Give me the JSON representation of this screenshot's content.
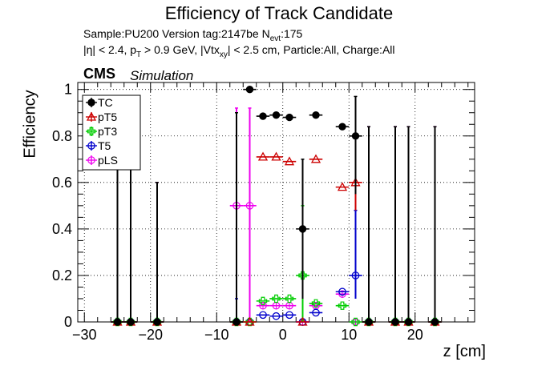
{
  "title": "Efficiency of Track Candidate",
  "info_line1": "Sample:PU200   Version tag:2147be  N_evt:175",
  "info_line2": "|η| < 2.4, p_T > 0.9 GeV, |Vtx_xy| < 2.5 cm, Particle:All, Charge:All",
  "cms_label": "CMS",
  "simulation_label": "Simulation",
  "colors": {
    "TC": "#000000",
    "pT5": "#cc0000",
    "pT3": "#00cc00",
    "T5": "#0000cc",
    "pLS": "#ee00ee"
  },
  "chart_data": {
    "type": "scatter",
    "title": "Efficiency of Track Candidate",
    "xlabel": "z [cm]",
    "ylabel": "Efficiency",
    "xlim": [
      -31,
      29
    ],
    "ylim": [
      0,
      1.03
    ],
    "xticks": [
      -30,
      -20,
      -10,
      0,
      10,
      20
    ],
    "yticks": [
      0,
      0.2,
      0.4,
      0.6,
      0.8,
      1
    ],
    "xtick_labels": [
      "−30",
      "−20",
      "−10",
      "0",
      "10",
      "20"
    ],
    "ytick_labels": [
      "0",
      "0.2",
      "0.4",
      "0.6",
      "0.8",
      "1"
    ],
    "grid": true,
    "legend_position": "top-left",
    "series": [
      {
        "name": "TC",
        "marker": "filled-circle",
        "points": [
          {
            "x": -25,
            "y": 0.0,
            "err_up": 0.85
          },
          {
            "x": -23,
            "y": 0.0,
            "err_up": 0.85
          },
          {
            "x": -19,
            "y": 0.0,
            "err_up": 0.6
          },
          {
            "x": -7,
            "y": 0.0,
            "err_up": 0.9
          },
          {
            "x": -5,
            "y": 1.0,
            "err_low": 0.0
          },
          {
            "x": -3,
            "y": 0.885
          },
          {
            "x": -1,
            "y": 0.89
          },
          {
            "x": 1,
            "y": 0.88
          },
          {
            "x": 3,
            "y": 0.4,
            "err_up": 0.3,
            "err_low": 0.3
          },
          {
            "x": 5,
            "y": 0.89
          },
          {
            "x": 9,
            "y": 0.84
          },
          {
            "x": 11,
            "y": 0.8,
            "err_up": 0.17,
            "err_low": 0.25
          },
          {
            "x": 13,
            "y": 0.0,
            "err_up": 0.84
          },
          {
            "x": 17,
            "y": 0.0,
            "err_up": 0.84
          },
          {
            "x": 19,
            "y": 0.0,
            "err_up": 0.84
          },
          {
            "x": 23,
            "y": 0.0,
            "err_up": 0.84
          }
        ]
      },
      {
        "name": "pT5",
        "marker": "open-triangle",
        "points": [
          {
            "x": -25,
            "y": 0.0
          },
          {
            "x": -23,
            "y": 0.0
          },
          {
            "x": -19,
            "y": 0.0
          },
          {
            "x": -7,
            "y": 0.0
          },
          {
            "x": -5,
            "y": 0.0
          },
          {
            "x": -3,
            "y": 0.71
          },
          {
            "x": -1,
            "y": 0.71
          },
          {
            "x": 1,
            "y": 0.69
          },
          {
            "x": 3,
            "y": 0.0
          },
          {
            "x": 5,
            "y": 0.7
          },
          {
            "x": 9,
            "y": 0.58
          },
          {
            "x": 11,
            "y": 0.6,
            "err_up": 0.2,
            "err_low": 0.12
          },
          {
            "x": 13,
            "y": 0.0
          },
          {
            "x": 17,
            "y": 0.0
          },
          {
            "x": 19,
            "y": 0.0
          },
          {
            "x": 23,
            "y": 0.0
          }
        ]
      },
      {
        "name": "pT3",
        "marker": "open-cross",
        "points": [
          {
            "x": -25,
            "y": 0.0
          },
          {
            "x": -23,
            "y": 0.0
          },
          {
            "x": -19,
            "y": 0.0
          },
          {
            "x": -7,
            "y": 0.0
          },
          {
            "x": -5,
            "y": 0.0
          },
          {
            "x": -3,
            "y": 0.09
          },
          {
            "x": -1,
            "y": 0.1
          },
          {
            "x": 1,
            "y": 0.1
          },
          {
            "x": 3,
            "y": 0.2,
            "err_up": 0.3,
            "err_low": 0.2
          },
          {
            "x": 5,
            "y": 0.08
          },
          {
            "x": 9,
            "y": 0.07
          },
          {
            "x": 11,
            "y": 0.0
          },
          {
            "x": 13,
            "y": 0.0
          },
          {
            "x": 17,
            "y": 0.0
          },
          {
            "x": 19,
            "y": 0.0
          },
          {
            "x": 23,
            "y": 0.0
          }
        ]
      },
      {
        "name": "T5",
        "marker": "open-circle",
        "points": [
          {
            "x": -25,
            "y": 0.0
          },
          {
            "x": -23,
            "y": 0.0
          },
          {
            "x": -19,
            "y": 0.0
          },
          {
            "x": -7,
            "y": 0.0,
            "err_up": 0.1
          },
          {
            "x": -5,
            "y": 0.0
          },
          {
            "x": -3,
            "y": 0.03
          },
          {
            "x": -1,
            "y": 0.025
          },
          {
            "x": 1,
            "y": 0.03
          },
          {
            "x": 3,
            "y": 0.0
          },
          {
            "x": 5,
            "y": 0.04
          },
          {
            "x": 9,
            "y": 0.13
          },
          {
            "x": 11,
            "y": 0.2,
            "err_up": 0.28,
            "err_low": 0.1
          },
          {
            "x": 13,
            "y": 0.0
          },
          {
            "x": 17,
            "y": 0.0
          },
          {
            "x": 19,
            "y": 0.0
          },
          {
            "x": 23,
            "y": 0.0
          }
        ]
      },
      {
        "name": "pLS",
        "marker": "open-star",
        "points": [
          {
            "x": -25,
            "y": 0.0,
            "err_up": 0.85
          },
          {
            "x": -23,
            "y": 0.0,
            "err_up": 0.85
          },
          {
            "x": -19,
            "y": 0.0,
            "err_up": 0.6
          },
          {
            "x": -7,
            "y": 0.5,
            "err_up": 0.42,
            "err_low": 0.5
          },
          {
            "x": -5,
            "y": 0.5,
            "err_up": 0.42,
            "err_low": 0.5
          },
          {
            "x": -3,
            "y": 0.07
          },
          {
            "x": -1,
            "y": 0.07
          },
          {
            "x": 1,
            "y": 0.07
          },
          {
            "x": 3,
            "y": 0.0
          },
          {
            "x": 5,
            "y": 0.07
          },
          {
            "x": 9,
            "y": 0.12
          },
          {
            "x": 11,
            "y": 0.0
          },
          {
            "x": 13,
            "y": 0.0,
            "err_up": 0.84
          },
          {
            "x": 17,
            "y": 0.0,
            "err_up": 0.84
          },
          {
            "x": 19,
            "y": 0.0,
            "err_up": 0.84
          },
          {
            "x": 23,
            "y": 0.0,
            "err_up": 0.84
          }
        ]
      }
    ]
  }
}
